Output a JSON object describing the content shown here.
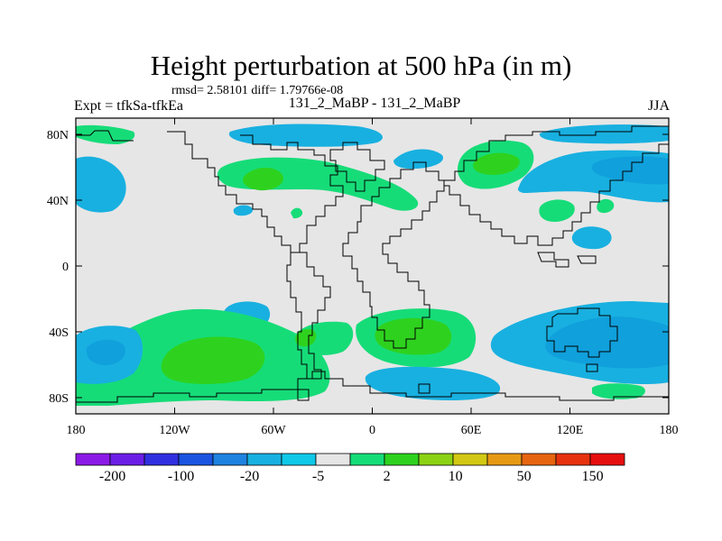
{
  "title": "Height perturbation at 500 hPa (in m)",
  "stats": "rmsd= 2.58101 diff= 1.79766e-08",
  "left_label": "Expt = tfkSa-tfkEa",
  "center_label": "131_2_MaBP - 131_2_MaBP",
  "right_label": "JJA",
  "map": {
    "lon_ticks": [
      "180",
      "120W",
      "60W",
      "0",
      "60E",
      "120E",
      "180"
    ],
    "lat_ticks": [
      "80N",
      "40N",
      "0",
      "40S",
      "80S"
    ],
    "background_color": "#e6e6e6"
  },
  "colorbar": {
    "colors": [
      "#8b1ae6",
      "#6b1ee6",
      "#3030e0",
      "#1a54e0",
      "#1e82e0",
      "#18b0e0",
      "#10c8e8",
      "#e6e6e6",
      "#16dc78",
      "#2ed21e",
      "#8cd214",
      "#d2c814",
      "#e69a14",
      "#e6640f",
      "#e6320f",
      "#e60f0f"
    ],
    "labels": [
      "-200",
      "-100",
      "-20",
      "-5",
      "2",
      "10",
      "50",
      "150"
    ]
  }
}
